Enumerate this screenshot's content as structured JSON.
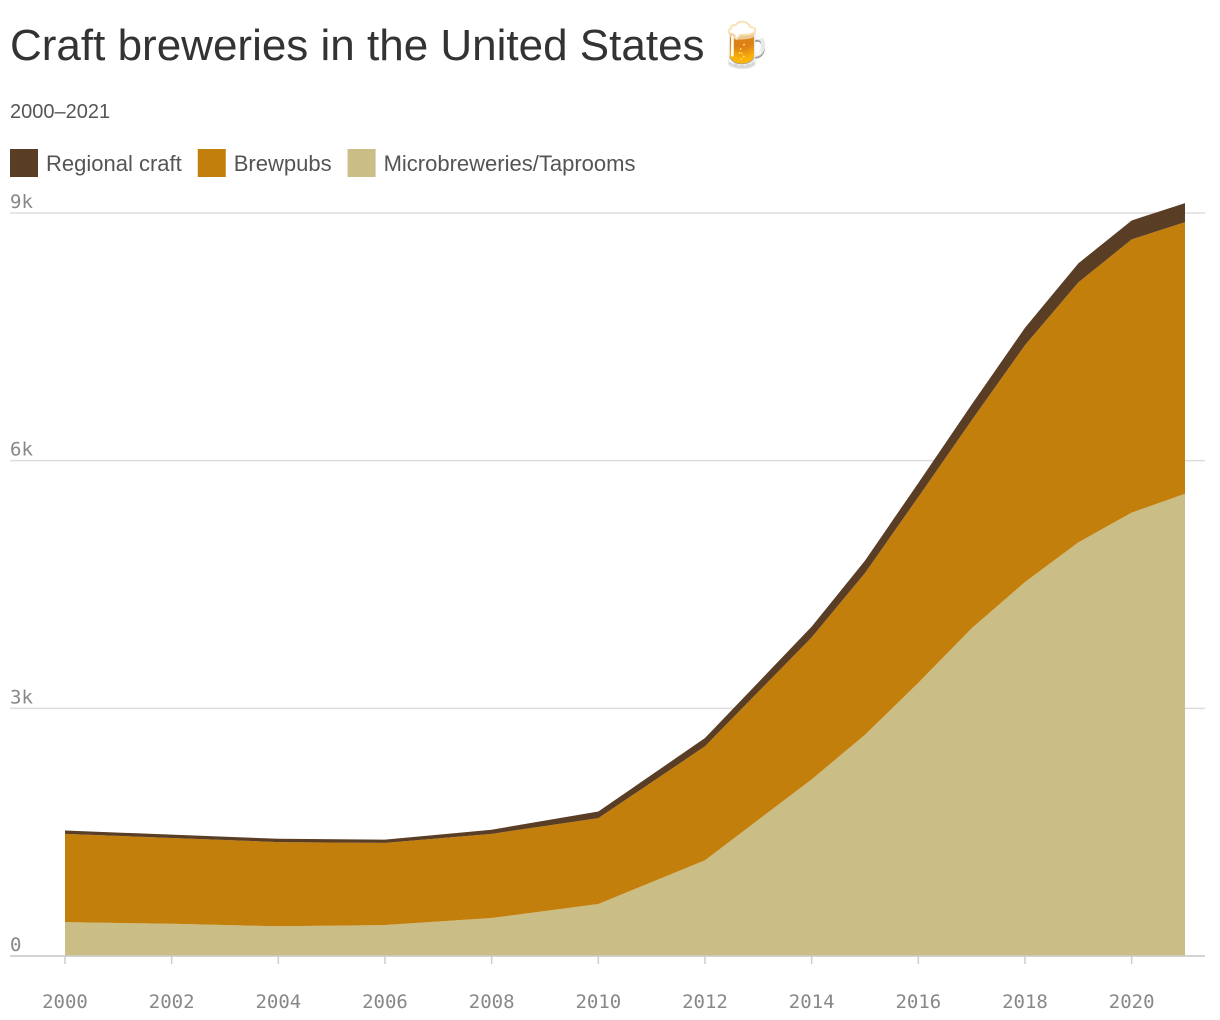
{
  "chart_data": {
    "type": "stacked-area",
    "title": "Craft breweries in the United States 🍺",
    "subtitle": "2000–2021",
    "x": [
      2000,
      2002,
      2004,
      2006,
      2008,
      2010,
      2012,
      2014,
      2015,
      2016,
      2017,
      2018,
      2019,
      2020,
      2021
    ],
    "series": [
      {
        "name": "Regional craft",
        "color": "#5a3d25",
        "values": [
          40,
          40,
          40,
          40,
          50,
          80,
          100,
          130,
          150,
          170,
          190,
          210,
          230,
          230,
          230
        ]
      },
      {
        "name": "Brewpubs",
        "color": "#c27f0c",
        "values": [
          1070,
          1040,
          1020,
          995,
          1020,
          1040,
          1380,
          1720,
          1960,
          2250,
          2520,
          2870,
          3150,
          3310,
          3290
        ]
      },
      {
        "name": "Microbreweries/Taprooms",
        "color": "#cbbd86",
        "values": [
          410,
          390,
          360,
          375,
          460,
          630,
          1160,
          2140,
          2680,
          3310,
          3970,
          4530,
          5010,
          5370,
          5600
        ]
      }
    ],
    "xlim": [
      2000,
      2021
    ],
    "xticks": [
      2000,
      2002,
      2004,
      2006,
      2008,
      2010,
      2012,
      2014,
      2016,
      2018,
      2020
    ],
    "ylim": [
      0,
      9200
    ],
    "yticks": [
      0,
      {
        "value": 3000,
        "label": "3k"
      },
      {
        "value": 6000,
        "label": "6k"
      },
      {
        "value": 9000,
        "label": "9k"
      }
    ],
    "grid": true
  }
}
